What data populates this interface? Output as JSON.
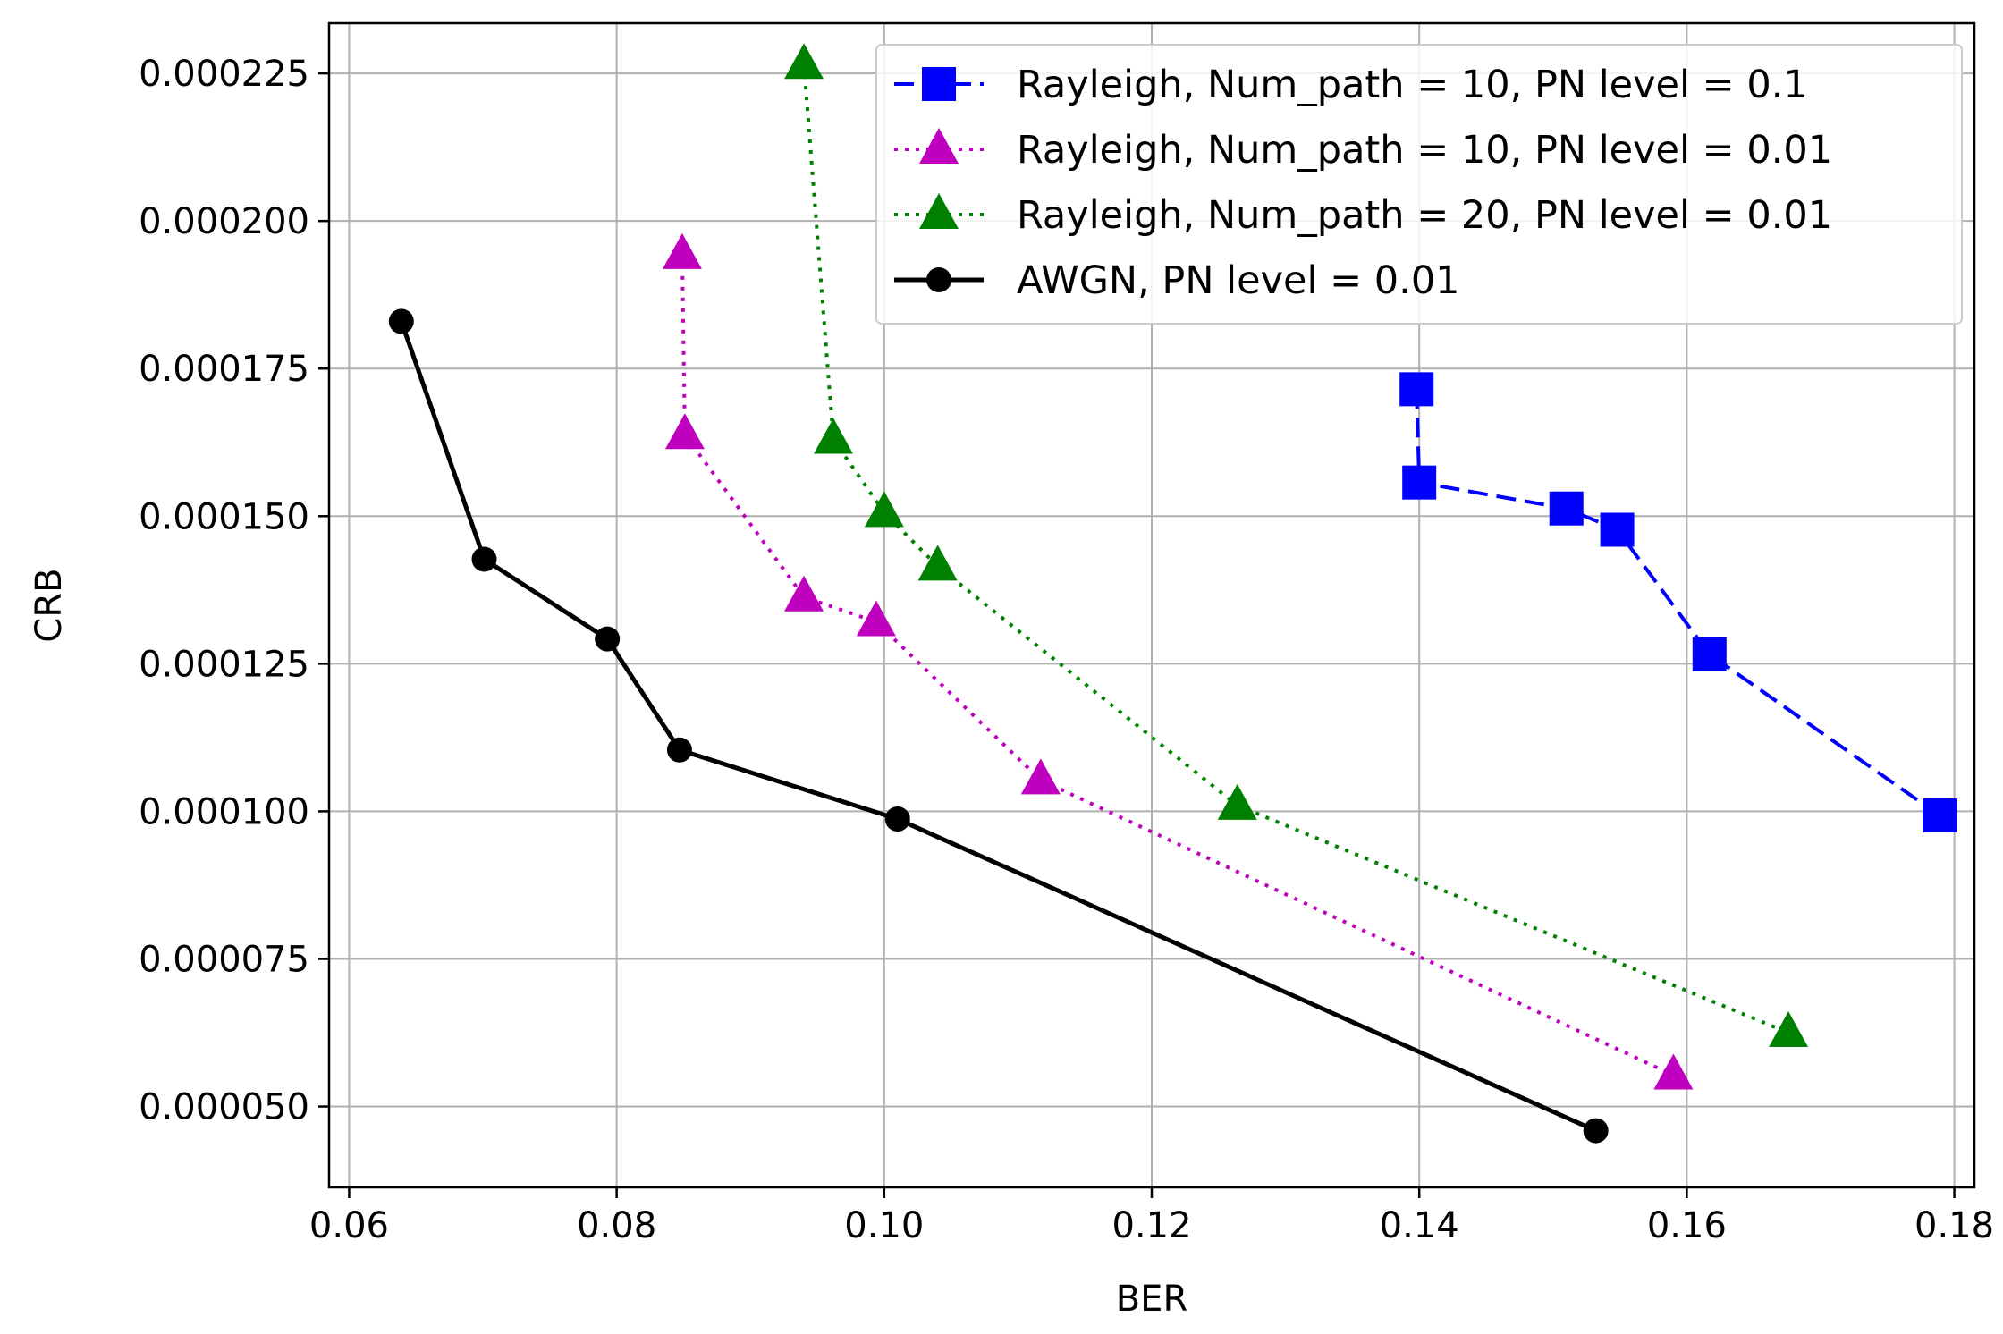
{
  "chart_data": {
    "type": "line",
    "title": "",
    "xlabel": "BER",
    "ylabel": "CRB",
    "xlim": [
      0.0585,
      0.1815
    ],
    "ylim": [
      3.63e-05,
      0.0002335
    ],
    "grid": true,
    "legend_position": "top-right",
    "x_ticks": [
      {
        "value": 0.06,
        "label": "0.06"
      },
      {
        "value": 0.08,
        "label": "0.08"
      },
      {
        "value": 0.1,
        "label": "0.10"
      },
      {
        "value": 0.12,
        "label": "0.12"
      },
      {
        "value": 0.14,
        "label": "0.14"
      },
      {
        "value": 0.16,
        "label": "0.16"
      },
      {
        "value": 0.18,
        "label": "0.18"
      }
    ],
    "y_ticks": [
      {
        "value": 5e-05,
        "label": "0.000050"
      },
      {
        "value": 7.5e-05,
        "label": "0.000075"
      },
      {
        "value": 0.0001,
        "label": "0.000100"
      },
      {
        "value": 0.000125,
        "label": "0.000125"
      },
      {
        "value": 0.00015,
        "label": "0.000150"
      },
      {
        "value": 0.000175,
        "label": "0.000175"
      },
      {
        "value": 0.0002,
        "label": "0.000200"
      },
      {
        "value": 0.000225,
        "label": "0.000225"
      }
    ],
    "series": [
      {
        "name": "Rayleigh, Num_path = 10, PN level = 0.1",
        "color": "#0000ff",
        "line_style": "dashed",
        "marker": "square",
        "x": [
          0.1398,
          0.14,
          0.151,
          0.1548,
          0.1617,
          0.1789
        ],
        "y": [
          0.0001715,
          0.0001557,
          0.0001513,
          0.0001477,
          0.0001266,
          9.93e-05
        ]
      },
      {
        "name": "Rayleigh, Num_path = 10, PN level = 0.01",
        "color": "#bf00bf",
        "line_style": "dotted",
        "marker": "triangle",
        "x": [
          0.0849,
          0.0851,
          0.094,
          0.0994,
          0.1117,
          0.159
        ],
        "y": [
          0.0001943,
          0.0001638,
          0.0001363,
          0.0001321,
          0.0001053,
          5.53e-05
        ]
      },
      {
        "name": "Rayleigh, Num_path = 20, PN level = 0.01",
        "color": "#008000",
        "line_style": "dotted",
        "marker": "triangle",
        "x": [
          0.094,
          0.0962,
          0.1,
          0.104,
          0.1264,
          0.1676
        ],
        "y": [
          0.0002265,
          0.000163,
          0.0001506,
          0.0001415,
          0.000101,
          6.25e-05
        ]
      },
      {
        "name": "AWGN, PN level = 0.01",
        "color": "#000000",
        "line_style": "solid",
        "marker": "circle",
        "x": [
          0.0639,
          0.0701,
          0.0793,
          0.0847,
          0.101,
          0.1532
        ],
        "y": [
          0.000183,
          0.0001427,
          0.0001292,
          0.0001104,
          9.87e-05,
          4.59e-05
        ]
      }
    ]
  }
}
